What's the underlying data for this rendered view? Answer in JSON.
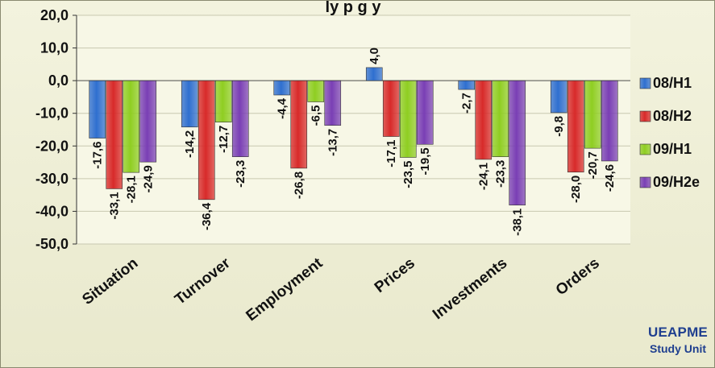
{
  "chart_data": {
    "type": "bar",
    "title": "ly p      g     y",
    "categories": [
      "Situation",
      "Turnover",
      "Employment",
      "Prices",
      "Investments",
      "Orders"
    ],
    "series": [
      {
        "name": "08/H1",
        "color": "#2f6fd0",
        "values": [
          -17.6,
          -14.2,
          -4.4,
          4.0,
          -2.7,
          -9.8
        ]
      },
      {
        "name": "08/H2",
        "color": "#d82a2a",
        "values": [
          -33.1,
          -36.4,
          -26.8,
          -17.1,
          -24.1,
          -28.0
        ]
      },
      {
        "name": "09/H1",
        "color": "#8fce22",
        "values": [
          -28.1,
          -12.7,
          -6.5,
          -23.5,
          -23.3,
          -20.7
        ]
      },
      {
        "name": "09/H2e",
        "color": "#7a3fb5",
        "values": [
          -24.9,
          -23.3,
          -13.7,
          -19.5,
          -38.1,
          -24.6
        ]
      }
    ],
    "ylim": [
      -50,
      20
    ],
    "yticks": [
      20,
      10,
      0,
      -10,
      -20,
      -30,
      -40,
      -50
    ],
    "tick_decimals": 1,
    "grid": true,
    "legend": "right"
  },
  "brand": {
    "line1": "UEAPME",
    "line2": "Study Unit"
  }
}
